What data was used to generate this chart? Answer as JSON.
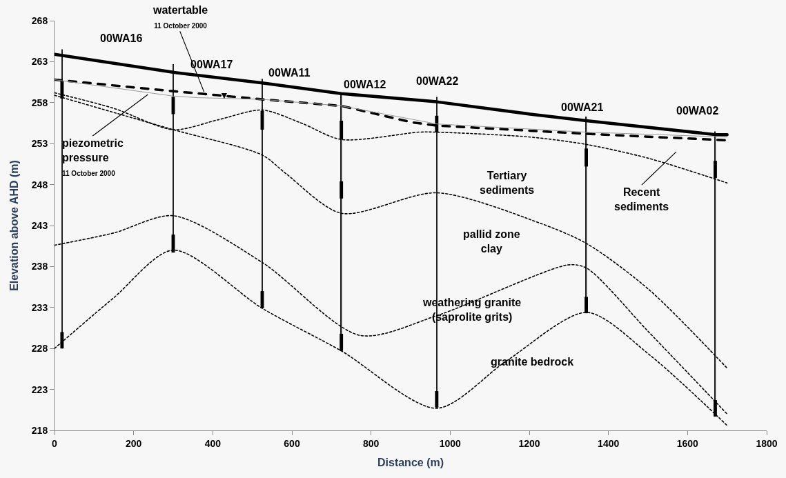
{
  "chart_data": {
    "type": "line",
    "xlabel": "Distance (m)",
    "ylabel": "Elevation above AHD (m)",
    "xlim": [
      0,
      1800
    ],
    "xticks": [
      0,
      200,
      400,
      600,
      800,
      1000,
      1200,
      1400,
      1600,
      1800
    ],
    "ylim": [
      218,
      268
    ],
    "yticks": [
      218,
      223,
      228,
      233,
      238,
      243,
      248,
      253,
      258,
      263,
      268
    ],
    "grid": false,
    "marker": "none",
    "series": [
      {
        "color": "#000000",
        "line_style": "solid",
        "x": [
          0,
          300,
          525,
          725,
          966,
          1202,
          1344,
          1670,
          1700
        ],
        "values": [
          263.9,
          261.7,
          260.4,
          259.1,
          258.1,
          256.6,
          255.8,
          254.1,
          254.1
        ]
      },
      {
        "color": "#000000",
        "line_style": "dashed",
        "x": [
          0,
          300,
          413,
          525,
          725,
          903,
          966,
          1344,
          1700
        ],
        "values": [
          260.8,
          259.4,
          258.9,
          258.4,
          257.6,
          255.6,
          255.2,
          254.2,
          253.4
        ]
      },
      {
        "color": "#999999",
        "line_style": "solid",
        "x": [
          0,
          300,
          364,
          525,
          725,
          966,
          1344,
          1700
        ],
        "values": [
          260.8,
          258.8,
          258.6,
          258.4,
          257.6,
          255.4,
          254.4,
          253.8
        ]
      },
      {
        "color": "#000000",
        "line_style": "dotted",
        "x": [
          0,
          150,
          300,
          413,
          525,
          624,
          725,
          921,
          966,
          1202,
          1344,
          1502,
          1700
        ],
        "values": [
          259.2,
          257.3,
          254.7,
          255.9,
          257.1,
          255.5,
          253.5,
          254.4,
          254.4,
          253.8,
          252.9,
          251.2,
          248.2
        ]
      },
      {
        "color": "#000000",
        "line_style": "dotted",
        "x": [
          0,
          150,
          300,
          525,
          586,
          725,
          966,
          1221,
          1345,
          1502,
          1700
        ],
        "values": [
          258.9,
          256.8,
          254.7,
          251.6,
          249.3,
          244.5,
          247.0,
          243.4,
          240.8,
          235.2,
          225.6
        ]
      },
      {
        "color": "#000000",
        "line_style": "dotted",
        "x": [
          0,
          150,
          300,
          525,
          772,
          966,
          1299,
          1345,
          1502,
          1700
        ],
        "values": [
          240.6,
          242.1,
          244.2,
          238.5,
          229.6,
          232.0,
          238.2,
          237.8,
          230.0,
          220.0
        ]
      },
      {
        "color": "#000000",
        "line_style": "dotted",
        "x": [
          0,
          150,
          300,
          525,
          725,
          966,
          1143,
          1345,
          1502,
          1700
        ],
        "values": [
          228.0,
          234.2,
          240.0,
          232.9,
          227.7,
          220.7,
          226.5,
          232.4,
          227.3,
          218.6
        ]
      },
      {
        "type": "bar",
        "color": "#222222",
        "x": [
          19,
          300,
          525,
          725,
          966,
          1344,
          1670
        ],
        "base": [
          228.0,
          239.8,
          232.9,
          227.7,
          220.8,
          232.3,
          219.7
        ],
        "values": [
          36.5,
          22.9,
          28.0,
          31.5,
          37.9,
          24.0,
          34.8
        ]
      },
      {
        "type": "bar",
        "color": "#000000",
        "x": [
          19,
          300,
          525,
          725,
          966,
          1344,
          1670
        ],
        "base": [
          258.5,
          256.6,
          254.7,
          253.5,
          254.4,
          250.2,
          248.8
        ],
        "values": [
          2.1,
          2.1,
          2.3,
          2.3,
          2.0,
          2.2,
          2.1
        ]
      },
      {
        "type": "bar",
        "color": "#000000",
        "x": [
          19,
          300,
          525,
          725,
          966,
          1344,
          1670
        ],
        "base": [
          228.0,
          239.7,
          232.9,
          227.7,
          220.8,
          232.3,
          219.7
        ],
        "values": [
          2.0,
          2.2,
          2.1,
          2.1,
          2.0,
          2.0,
          2.0
        ]
      },
      {
        "type": "bar",
        "color": "#000000",
        "x": [
          725
        ],
        "base": [
          246.3
        ],
        "values": [
          2.1
        ]
      }
    ],
    "annotations": [
      "00WA16",
      "00WA17",
      "00WA11",
      "00WA12",
      "00WA22",
      "00WA21",
      "00WA02",
      {
        "text": "watertable\n11 October 2000",
        "x": 378,
        "y": 259.3
      },
      "▼",
      {
        "text": "piezometric\npressure\n11 October 2000",
        "x": 236,
        "y": 259.0
      },
      "Tertiary\nsediments",
      "Recent\nsediments",
      "pallid zone\nclay",
      "weathering granite\n(saprolite grits)",
      "granite bedrock"
    ]
  }
}
